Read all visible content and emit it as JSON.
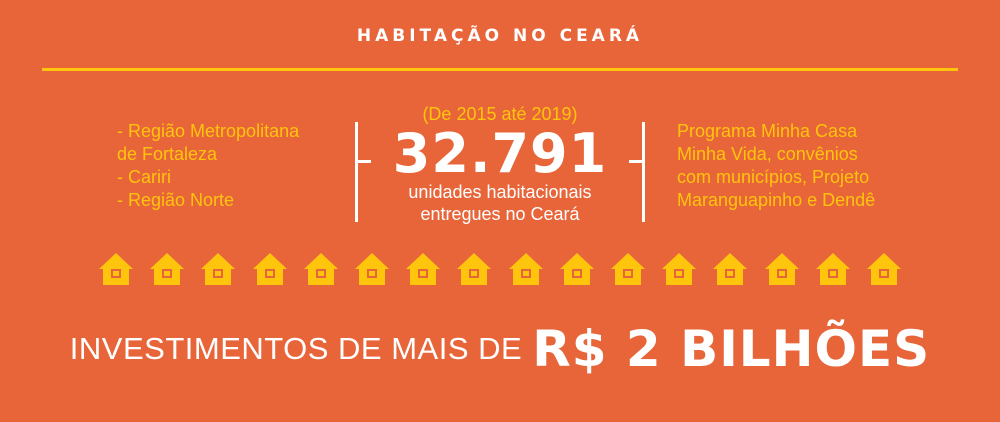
{
  "header": {
    "title": "HABITAÇÃO NO CEARÁ"
  },
  "regions": [
    "- Região Metropolitana",
    "de Fortaleza",
    "- Cariri",
    "- Região Norte"
  ],
  "highlight": {
    "period": "(De 2015 até 2019)",
    "number": "32.791",
    "description_line1": "unidades habitacionais",
    "description_line2": "entregues no Ceará"
  },
  "programs": [
    "Programa Minha Casa",
    "Minha Vida, convênios",
    "com municípios, Projeto",
    "Maranguapinho e Dendê"
  ],
  "houses": {
    "count": 16,
    "icon": "house-icon",
    "color": "#FFC40C"
  },
  "investment": {
    "prefix": "INVESTIMENTOS DE MAIS DE",
    "amount": "R$ 2 BILHÕES"
  },
  "colors": {
    "background": "#E8653A",
    "accent": "#FFC40C",
    "text": "#FFFFFF"
  }
}
